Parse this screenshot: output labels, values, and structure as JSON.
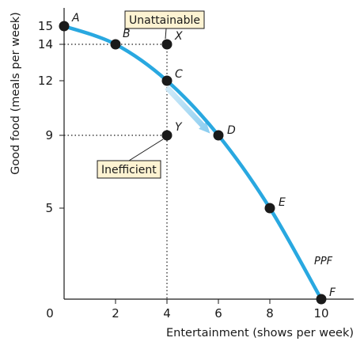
{
  "chart_data": {
    "type": "line",
    "xlabel": "Entertainment (shows per week)",
    "ylabel": "Good food (meals per week)",
    "xlim": [
      0,
      10
    ],
    "ylim": [
      0,
      16
    ],
    "x_ticks": [
      "0",
      "2",
      "4",
      "6",
      "8",
      "10"
    ],
    "y_ticks": [
      "15",
      "14",
      "12",
      "9",
      "5"
    ],
    "y_tick_values": [
      15,
      14,
      12,
      9,
      5
    ],
    "curve_label": "PPF",
    "curve_color": "#29a8e0",
    "points": [
      {
        "label": "A",
        "x": 0,
        "y": 15
      },
      {
        "label": "B",
        "x": 2,
        "y": 14
      },
      {
        "label": "C",
        "x": 4,
        "y": 12
      },
      {
        "label": "D",
        "x": 6,
        "y": 9
      },
      {
        "label": "E",
        "x": 8,
        "y": 5
      },
      {
        "label": "F",
        "x": 10,
        "y": 0
      }
    ],
    "extra_points": [
      {
        "label": "X",
        "x": 4,
        "y": 14,
        "annotation": "Unattainable"
      },
      {
        "label": "Y",
        "x": 4,
        "y": 9,
        "annotation": "Inefficient"
      }
    ],
    "arrow": {
      "from": "C",
      "to": "D"
    },
    "annotation_box_color": "#fdf3d2"
  }
}
